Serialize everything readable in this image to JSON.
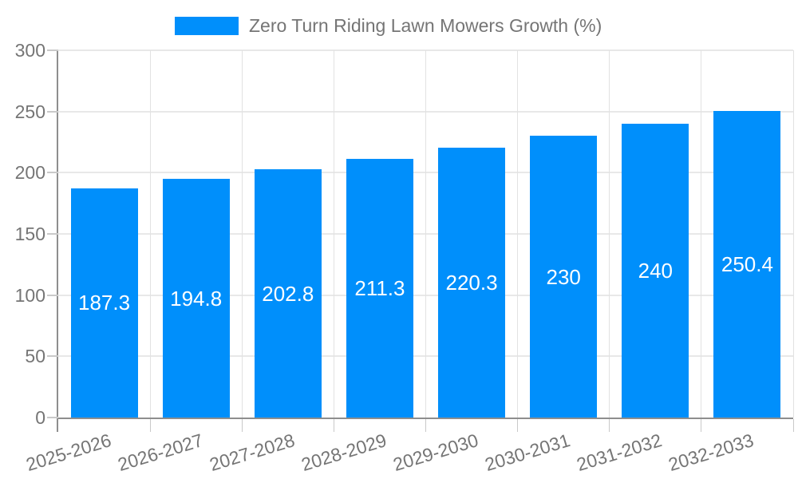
{
  "colors": {
    "bar": "#008FFB",
    "grid": "#e8e8e8",
    "grid_v": "#e2e2e2",
    "axis": "#8e8e8e",
    "tick": "#c9c9c9",
    "tick_label": "#757575",
    "bar_label": "#ffffff",
    "legend_text": "#757575",
    "background": "#ffffff"
  },
  "legend": {
    "position": "top",
    "items": [
      {
        "label": "Zero Turn Riding Lawn Mowers Growth (%)",
        "color": "#008FFB"
      }
    ]
  },
  "chart_data": {
    "type": "bar",
    "title": "Zero Turn Riding Lawn Mowers Growth (%)",
    "categories": [
      "2025-2026",
      "2026-2027",
      "2027-2028",
      "2028-2029",
      "2029-2030",
      "2030-2031",
      "2031-2032",
      "2032-2033"
    ],
    "series": [
      {
        "name": "Zero Turn Riding Lawn Mowers Growth (%)",
        "values": [
          187.3,
          194.8,
          202.8,
          211.3,
          220.3,
          230,
          240,
          250.4
        ],
        "data_labels": [
          "187.3",
          "194.8",
          "202.8",
          "211.3",
          "220.3",
          "230",
          "240",
          "250.4"
        ]
      }
    ],
    "xlabel": "",
    "ylabel": "",
    "ylim": [
      0,
      300
    ],
    "yticks": [
      0,
      50,
      100,
      150,
      200,
      250,
      300
    ],
    "grid": true,
    "legend_position": "top",
    "bar_color": "#008FFB",
    "data_label_position": "middle",
    "data_label_color": "#ffffff",
    "x_label_rotation_deg": -17
  }
}
